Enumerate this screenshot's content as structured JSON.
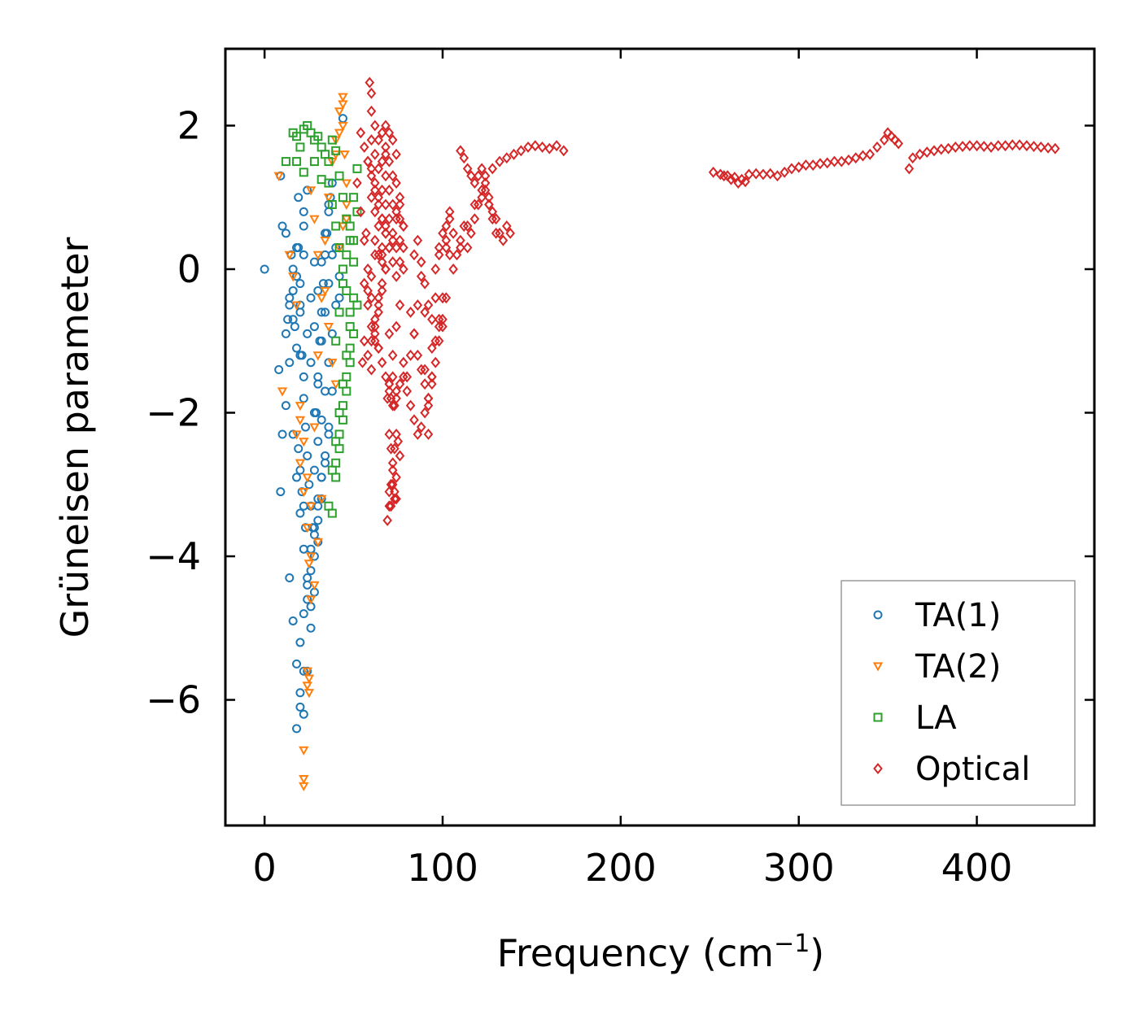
{
  "chart_data": {
    "type": "scatter",
    "xlabel": "Frequency (cm",
    "xlabel_sup": "−1",
    "xlabel_close": ")",
    "ylabel": "Grüneisen parameter",
    "xlim": [
      -22,
      466
    ],
    "ylim": [
      -7.75,
      3.07
    ],
    "xticks": [
      0,
      100,
      200,
      300,
      400
    ],
    "xtick_labels": [
      "0",
      "100",
      "200",
      "300",
      "400"
    ],
    "yticks": [
      2,
      0,
      -2,
      -4,
      -6
    ],
    "ytick_labels": [
      "2",
      "0",
      "−2",
      "−4",
      "−6"
    ],
    "legend_position": "lower-right",
    "series": [
      {
        "name": "TA(1)",
        "marker": "circle",
        "color": "#1f77b4",
        "x": [
          0,
          8,
          9,
          10,
          12,
          13,
          14,
          15,
          16,
          17,
          18,
          19,
          20,
          21,
          22,
          22,
          23,
          24,
          25,
          26,
          27,
          28,
          29,
          30,
          31,
          32,
          33,
          34,
          35,
          36,
          37,
          38,
          40,
          42,
          44,
          16,
          18,
          20,
          22,
          24,
          26,
          28,
          30,
          14,
          16,
          18,
          20,
          22,
          24,
          26,
          28,
          30,
          32,
          34,
          36,
          38,
          20,
          22,
          24,
          26,
          28,
          30,
          32,
          34,
          36,
          18,
          20,
          22,
          24,
          26,
          28,
          30,
          32,
          20,
          22,
          24,
          26,
          28,
          19,
          20,
          21,
          22,
          23,
          18,
          19,
          20,
          22,
          24,
          12,
          14,
          16,
          18,
          20,
          22,
          9,
          10,
          12,
          14,
          16,
          30,
          32,
          34,
          36,
          38,
          40,
          42,
          28,
          30,
          32,
          34,
          36,
          38,
          26,
          28,
          30,
          32,
          34,
          36
        ],
        "y": [
          0,
          -1.4,
          1.3,
          0.6,
          0.5,
          -0.7,
          -0.5,
          0.2,
          -0.3,
          -0.8,
          0.3,
          1.0,
          -0.2,
          -1.2,
          0.6,
          -1.8,
          -2.2,
          -2.6,
          -3.0,
          -3.3,
          -3.6,
          -2.8,
          -2.0,
          -1.6,
          -1.0,
          -0.6,
          -0.2,
          0.2,
          0.5,
          0.8,
          1.0,
          1.2,
          0.3,
          -0.4,
          2.1,
          -2.3,
          -2.9,
          -3.4,
          -3.9,
          -4.4,
          -4.7,
          -4.0,
          -3.5,
          -4.3,
          -4.9,
          -5.5,
          -5.9,
          -6.2,
          -5.6,
          -5.0,
          -4.5,
          -3.8,
          -3.2,
          -2.7,
          -2.2,
          -1.7,
          -5.2,
          -4.8,
          -4.3,
          -3.9,
          -3.6,
          -3.2,
          -2.9,
          -2.6,
          -2.3,
          -6.4,
          -6.1,
          -5.6,
          -4.6,
          -4.2,
          -3.7,
          -3.3,
          -2.9,
          -1.2,
          -1.5,
          -0.9,
          -0.4,
          0.1,
          -2.5,
          -2.8,
          -3.1,
          -3.3,
          -3.6,
          -0.1,
          0.3,
          -0.5,
          0.8,
          1.1,
          -0.9,
          -0.4,
          0.0,
          -1.1,
          -0.6,
          0.2,
          -3.1,
          -2.3,
          -1.9,
          -1.3,
          -0.7,
          -2.4,
          -2.1,
          -1.7,
          -1.3,
          -0.9,
          -0.5,
          -0.1,
          -2.0,
          -1.5,
          -1.0,
          -0.6,
          -0.2,
          0.2,
          -1.3,
          -0.8,
          -0.3,
          0.1,
          0.5,
          0.9
        ]
      },
      {
        "name": "TA(2)",
        "marker": "triangle-down",
        "color": "#ff7f0e",
        "x": [
          8,
          10,
          14,
          16,
          18,
          20,
          22,
          22,
          24,
          25,
          26,
          28,
          30,
          32,
          34,
          36,
          38,
          40,
          42,
          44,
          44,
          45,
          46,
          46,
          22,
          24,
          25,
          25,
          26,
          20,
          22,
          24,
          26,
          28,
          30,
          34,
          36,
          38,
          40,
          42,
          44,
          46,
          18,
          20,
          22,
          24,
          26,
          28,
          30,
          32,
          40,
          42,
          44
        ],
        "y": [
          1.3,
          -1.7,
          0.2,
          -0.1,
          -0.5,
          -2.1,
          -7.2,
          -6.7,
          -5.6,
          -5.9,
          -4.6,
          -2.2,
          -1.2,
          -0.4,
          0.4,
          1.0,
          1.5,
          1.8,
          2.2,
          2.4,
          2.0,
          1.6,
          1.2,
          0.7,
          -7.1,
          -5.8,
          -5.7,
          -4.1,
          -3.3,
          -1.9,
          -2.4,
          -2.9,
          1.1,
          0.7,
          0.2,
          -0.3,
          -0.8,
          -1.3,
          -1.6,
          0.3,
          0.6,
          0.9,
          -2.3,
          -2.7,
          -3.1,
          -3.6,
          -4.0,
          -4.4,
          -3.8,
          -3.2,
          1.6,
          1.9,
          2.3
        ]
      },
      {
        "name": "LA",
        "marker": "square",
        "color": "#2ca02c",
        "x": [
          16,
          18,
          20,
          22,
          24,
          26,
          28,
          30,
          32,
          34,
          36,
          38,
          40,
          42,
          44,
          46,
          48,
          50,
          50,
          48,
          46,
          44,
          42,
          40,
          38,
          36,
          40,
          42,
          44,
          46,
          48,
          38,
          40,
          42,
          44,
          46,
          48,
          50,
          52,
          36,
          38,
          40,
          42,
          44,
          46,
          48,
          50,
          52,
          40,
          42,
          44,
          46,
          48,
          50,
          52,
          12,
          18,
          22,
          28,
          32
        ],
        "y": [
          1.9,
          1.85,
          1.7,
          1.95,
          2.0,
          1.9,
          1.8,
          1.85,
          1.7,
          1.6,
          1.5,
          1.8,
          1.65,
          1.3,
          1.0,
          0.7,
          0.4,
          0.1,
          -0.4,
          -0.8,
          -1.2,
          -1.6,
          -2.0,
          -2.4,
          -2.8,
          -3.3,
          -2.7,
          -2.3,
          -1.9,
          -1.5,
          -1.1,
          -3.4,
          -2.9,
          -2.5,
          -2.1,
          -1.7,
          -1.3,
          -0.9,
          -0.5,
          1.2,
          0.9,
          0.6,
          0.3,
          0.0,
          -0.3,
          -0.6,
          0.4,
          0.8,
          -1.0,
          -0.6,
          -0.2,
          0.2,
          0.6,
          1.0,
          1.4,
          1.5,
          1.5,
          1.35,
          1.5,
          1.25
        ]
      },
      {
        "name": "Optical",
        "marker": "diamond",
        "color": "#d62728",
        "x": [
          55,
          56,
          57,
          58,
          59,
          60,
          60,
          60,
          60,
          60,
          62,
          62,
          62,
          62,
          62,
          64,
          64,
          64,
          64,
          64,
          66,
          66,
          66,
          66,
          66,
          68,
          68,
          68,
          68,
          68,
          70,
          70,
          70,
          70,
          70,
          72,
          72,
          72,
          72,
          72,
          74,
          74,
          74,
          74,
          74,
          76,
          76,
          76,
          76,
          76,
          78,
          78,
          78,
          56,
          58,
          60,
          62,
          64,
          66,
          68,
          58,
          60,
          62,
          64,
          66,
          68,
          70,
          58,
          60,
          62,
          64,
          66,
          68,
          70,
          72,
          74,
          76,
          78,
          70,
          71,
          72,
          73,
          74,
          75,
          76,
          70,
          71,
          72,
          73,
          74,
          69,
          70,
          71,
          72,
          73,
          74,
          69,
          70,
          71,
          72,
          73,
          74,
          80,
          82,
          84,
          86,
          88,
          90,
          92,
          92,
          94,
          96,
          96,
          98,
          98,
          100,
          100,
          102,
          102,
          104,
          104,
          106,
          108,
          110,
          112,
          114,
          116,
          118,
          120,
          122,
          124,
          126,
          128,
          130,
          132,
          134,
          136,
          138,
          124,
          128,
          132,
          136,
          140,
          144,
          148,
          152,
          156,
          160,
          164,
          168,
          110,
          112,
          114,
          116,
          118,
          120,
          122,
          124,
          126,
          128,
          84,
          86,
          88,
          90,
          92,
          94,
          96,
          98,
          100,
          102,
          104,
          90,
          94,
          98,
          102,
          106,
          110,
          114,
          118,
          122,
          126,
          130,
          82,
          84,
          86,
          88,
          90,
          92,
          94,
          96,
          98,
          100,
          78,
          80,
          82,
          84,
          86,
          88,
          90,
          92,
          94,
          252,
          256,
          260,
          264,
          268,
          272,
          276,
          280,
          284,
          288,
          292,
          296,
          300,
          304,
          308,
          312,
          316,
          320,
          324,
          328,
          332,
          336,
          340,
          344,
          348,
          350,
          352,
          354,
          356,
          362,
          364,
          368,
          372,
          376,
          380,
          384,
          388,
          392,
          396,
          400,
          404,
          408,
          412,
          416,
          420,
          424,
          428,
          432,
          436,
          440,
          444,
          258,
          262,
          266,
          270,
          60,
          62,
          64,
          66,
          68,
          70,
          72,
          74,
          76,
          78,
          52,
          54,
          56,
          58,
          60,
          62,
          64,
          66,
          68,
          54,
          56,
          58,
          60,
          62,
          64,
          66,
          68,
          70,
          72,
          74
        ],
        "y": [
          -1.3,
          -1.0,
          0.5,
          1.5,
          2.6,
          2.45,
          2.2,
          1.8,
          1.4,
          1.0,
          2.0,
          1.6,
          1.2,
          0.8,
          0.4,
          1.8,
          1.4,
          1.0,
          0.6,
          0.2,
          1.9,
          1.5,
          1.1,
          0.7,
          0.3,
          2.0,
          1.7,
          1.3,
          0.9,
          0.5,
          1.9,
          1.5,
          1.1,
          0.7,
          -0.9,
          1.8,
          1.3,
          0.9,
          0.4,
          -1.2,
          1.6,
          1.2,
          0.8,
          0.3,
          -0.8,
          1.0,
          0.7,
          0.4,
          0.1,
          -0.5,
          0.6,
          0.3,
          0.0,
          -0.2,
          -0.5,
          -0.8,
          -1.0,
          -0.6,
          -0.3,
          0.0,
          -1.2,
          -1.4,
          -0.9,
          -0.4,
          0.1,
          0.6,
          -1.6,
          -0.3,
          -0.1,
          0.2,
          -1.1,
          -1.3,
          -1.5,
          -1.7,
          -1.9,
          -1.8,
          -1.6,
          -1.3,
          -2.3,
          -2.5,
          -2.7,
          -2.5,
          -2.3,
          -2.4,
          -2.6,
          -3.1,
          -3.3,
          -3.0,
          -3.2,
          -2.9,
          -3.5,
          -3.3,
          -3.0,
          -2.8,
          -3.1,
          -3.2,
          -1.8,
          -1.6,
          -1.8,
          -1.5,
          -1.9,
          -1.7,
          -1.5,
          -1.2,
          -0.9,
          -0.5,
          -0.1,
          -0.6,
          -1.9,
          -2.3,
          -1.5,
          -1.0,
          -0.4,
          0.2,
          -0.8,
          -0.4,
          -0.7,
          0.3,
          0.6,
          0.7,
          0.8,
          0.5,
          0.2,
          0.4,
          0.6,
          0.3,
          0.5,
          0.7,
          0.9,
          1.1,
          1.2,
          1.0,
          0.8,
          0.7,
          0.5,
          0.4,
          0.6,
          0.5,
          1.3,
          1.4,
          1.5,
          1.55,
          1.6,
          1.65,
          1.7,
          1.72,
          1.7,
          1.68,
          1.72,
          1.65,
          1.65,
          1.55,
          1.4,
          1.3,
          1.2,
          1.3,
          1.4,
          1.1,
          0.9,
          0.7,
          0.2,
          0.4,
          0.1,
          -0.2,
          -0.5,
          -0.7,
          0.0,
          0.3,
          0.5,
          0.4,
          0.2,
          -1.4,
          -1.1,
          -0.7,
          -0.4,
          0.0,
          0.3,
          0.6,
          0.9,
          1.0,
          0.9,
          0.5,
          -0.6,
          -0.9,
          -1.2,
          -1.4,
          -1.6,
          -1.8,
          -1.5,
          -1.3,
          -1.0,
          -0.8,
          -1.5,
          -1.7,
          -1.9,
          -2.1,
          -2.3,
          -2.2,
          -2.0,
          -1.8,
          -1.6,
          1.35,
          1.32,
          1.3,
          1.28,
          1.25,
          1.32,
          1.33,
          1.32,
          1.33,
          1.3,
          1.35,
          1.4,
          1.42,
          1.45,
          1.45,
          1.47,
          1.48,
          1.5,
          1.5,
          1.52,
          1.55,
          1.58,
          1.6,
          1.7,
          1.8,
          1.9,
          1.85,
          1.8,
          1.75,
          1.4,
          1.55,
          1.6,
          1.63,
          1.65,
          1.67,
          1.68,
          1.7,
          1.71,
          1.72,
          1.72,
          1.71,
          1.7,
          1.72,
          1.72,
          1.73,
          1.73,
          1.72,
          1.71,
          1.7,
          1.69,
          1.68,
          1.3,
          1.25,
          1.2,
          1.22,
          -1.0,
          -0.7,
          -0.5,
          -0.2,
          0.0,
          0.3,
          0.5,
          0.7,
          0.9,
          0.6,
          1.2,
          0.8,
          0.4,
          0.0,
          -0.4,
          -0.8,
          -1.1,
          0.2,
          1.6,
          1.9,
          1.7,
          1.5,
          1.3,
          1.1,
          0.9,
          0.7,
          0.5,
          0.3,
          0.1,
          -0.1
        ]
      }
    ]
  }
}
